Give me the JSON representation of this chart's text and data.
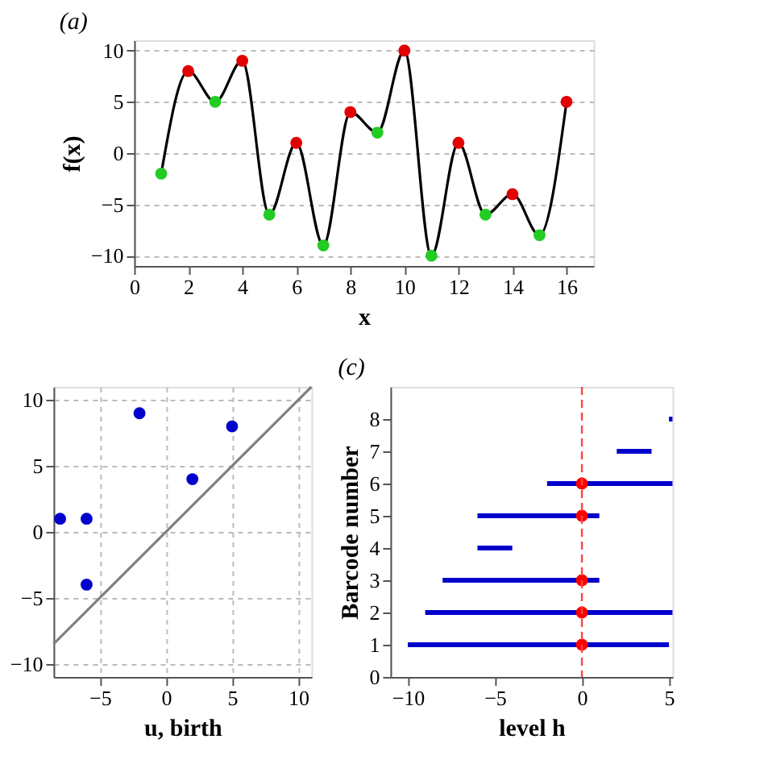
{
  "chart_data": [
    {
      "type": "line",
      "title": "(a)",
      "xlabel": "x",
      "ylabel": "f(x)",
      "x": [
        1,
        2,
        3,
        4,
        5,
        6,
        7,
        8,
        9,
        10,
        11,
        12,
        13,
        14,
        15,
        16
      ],
      "xlim": [
        0,
        17
      ],
      "xticks": [
        0,
        2,
        4,
        6,
        8,
        10,
        12,
        14,
        16
      ],
      "ylim": [
        -11,
        11
      ],
      "yticks": [
        -10,
        -5,
        0,
        5,
        10
      ],
      "grid": "y",
      "series": [
        {
          "color": "#000000",
          "values": [
            -2,
            8,
            5,
            9,
            -6,
            1,
            -9,
            4,
            2,
            10,
            -10,
            1,
            -6,
            -4,
            -8,
            5
          ]
        },
        {
          "type": "scatter",
          "color": "#e00000",
          "x": [
            2,
            4,
            6,
            8,
            10,
            12,
            14,
            16
          ],
          "values": [
            8,
            9,
            1,
            4,
            10,
            1,
            -4,
            5
          ]
        },
        {
          "type": "scatter",
          "color": "#22cc22",
          "x": [
            1,
            3,
            5,
            7,
            9,
            11,
            13,
            15
          ],
          "values": [
            -2,
            5,
            -6,
            -9,
            2,
            -10,
            -6,
            -8
          ]
        }
      ]
    },
    {
      "type": "scatter",
      "xlabel": "u, birth",
      "xlim": [
        -8.5,
        11
      ],
      "xticks": [
        -5,
        0,
        5,
        10
      ],
      "ylim": [
        -11,
        11
      ],
      "yticks": [
        -10,
        -5,
        0,
        5,
        10
      ],
      "grid": true,
      "series": [
        {
          "color": "#0000cc",
          "x": [
            -8,
            -6,
            -6,
            -2,
            2,
            5
          ],
          "values": [
            1,
            1,
            -4,
            9,
            4,
            8
          ]
        },
        {
          "type": "line",
          "color": "#808080",
          "x": [
            -8.5,
            11
          ],
          "values": [
            -8.5,
            11
          ]
        }
      ]
    },
    {
      "type": "bar",
      "orientation": "horizontal",
      "title": "(c)",
      "xlabel": "level h",
      "ylabel": "Barcode number",
      "x": [
        1,
        2,
        3,
        4,
        5,
        6,
        7,
        8
      ],
      "xlim": [
        -11,
        5.2
      ],
      "xticks": [
        -10,
        -5,
        0,
        5
      ],
      "ylim": [
        0,
        9
      ],
      "yticks": [
        0,
        1,
        2,
        3,
        4,
        5,
        6,
        7,
        8
      ],
      "ref_lines": [
        {
          "axis": "x",
          "value": 0,
          "color": "#ff4444",
          "line_style": "dashed"
        }
      ],
      "series": [
        {
          "color": "#0000cc",
          "base": [
            -10,
            -9,
            -8,
            -6,
            -6,
            -2,
            2,
            5
          ],
          "values": [
            15,
            14.2,
            9,
            2,
            7,
            7.2,
            2,
            0.2
          ]
        },
        {
          "type": "scatter",
          "color": "#ff0000",
          "x": [
            1,
            2,
            3,
            5,
            6
          ],
          "values": [
            0,
            0,
            0,
            0,
            0
          ]
        }
      ]
    }
  ]
}
